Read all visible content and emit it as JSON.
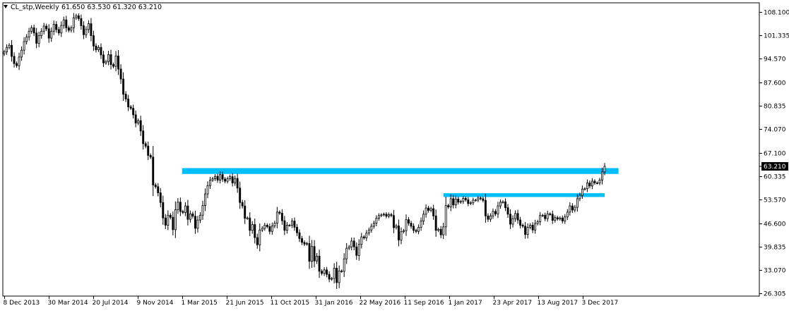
{
  "header": {
    "symbol": "CL_stp,Weekly",
    "ohlc": "61.650 63.530 61.320 63.210"
  },
  "colors": {
    "bull": "#ffffff",
    "bear": "#000000",
    "wick": "#000000",
    "zone": "#00bfff",
    "axis": "#000000",
    "price_tag": "#000000",
    "price_tag_text": "#ffffff"
  },
  "chart_data": {
    "type": "candlestick",
    "timeframe": "Weekly",
    "ylim": [
      26.305,
      108.1
    ],
    "y_ticks": [
      108.1,
      101.335,
      94.57,
      87.6,
      80.835,
      74.07,
      67.1,
      60.335,
      53.57,
      46.6,
      39.835,
      33.07,
      26.305
    ],
    "y_tick_labels": [
      "108.100",
      "101.335",
      "94.570",
      "87.600",
      "80.835",
      "74.070",
      "67.100",
      "60.335",
      "53.570",
      "46.600",
      "39.835",
      "33.070",
      "26.305"
    ],
    "x_start": "2013-12-08",
    "x_end": "2018-01-28",
    "x_ticks": [
      "2013-12-08",
      "2014-03-30",
      "2014-07-20",
      "2014-11-09",
      "2015-03-01",
      "2015-06-21",
      "2015-10-11",
      "2016-01-31",
      "2016-05-22",
      "2016-09-11",
      "2017-01-01",
      "2017-04-23",
      "2017-08-13",
      "2017-12-03"
    ],
    "x_tick_labels": [
      "8 Dec 2013",
      "30 Mar 2014",
      "20 Jul 2014",
      "9 Nov 2014",
      "1 Mar 2015",
      "21 Jun 2015",
      "11 Oct 2015",
      "31 Jan 2016",
      "22 May 2016",
      "11 Sep 2016",
      "1 Jan 2017",
      "23 Apr 2017",
      "13 Aug 2017",
      "3 Dec 2017"
    ],
    "last_price": 63.21,
    "last_price_label": "63.210",
    "closes": [
      96.5,
      97.8,
      98.4,
      95.2,
      93.1,
      92.5,
      95.0,
      97.0,
      99.5,
      100.8,
      102.5,
      103.5,
      102.0,
      99.0,
      101.2,
      102.5,
      104.0,
      103.2,
      100.5,
      102.5,
      104.5,
      103.0,
      102.0,
      104.2,
      105.8,
      103.5,
      102.8,
      103.5,
      106.4,
      107.0,
      106.2,
      104.1,
      101.5,
      103.0,
      104.7,
      101.2,
      98.2,
      97.1,
      97.8,
      95.6,
      93.3,
      93.7,
      95.7,
      92.8,
      92.3,
      95.3,
      91.5,
      88.6,
      84.2,
      82.8,
      80.5,
      80.1,
      78.2,
      75.8,
      76.5,
      73.5,
      69.8,
      69.1,
      66.4,
      65.9,
      57.8,
      57.3,
      55.5,
      52.7,
      48.2,
      46.1,
      49.0,
      48.4,
      44.8,
      50.6,
      52.8,
      50.1,
      49.8,
      51.7,
      47.8,
      49.4,
      48.7,
      45.2,
      47.6,
      49.0,
      51.8,
      55.2,
      57.6,
      59.2,
      59.6,
      60.3,
      59.2,
      60.8,
      59.5,
      58.9,
      59.6,
      60.2,
      58.4,
      59.7,
      56.9,
      52.7,
      51.7,
      48.1,
      48.2,
      44.6,
      46.3,
      42.5,
      40.4,
      44.7,
      45.2,
      46.1,
      45.7,
      44.3,
      45.9,
      46.7,
      49.9,
      49.6,
      47.4,
      44.6,
      46.1,
      46.1,
      47.3,
      45.5,
      43.9,
      42.2,
      41.1,
      40.6,
      40.8,
      35.6,
      39.9,
      35.7,
      37.1,
      32.7,
      32.1,
      33.1,
      31.8,
      30.4,
      30.6,
      33.6,
      29.4,
      32.8,
      32.7,
      36.3,
      39.4,
      39.8,
      41.5,
      39.8,
      37.3,
      40.5,
      42.7,
      42.4,
      43.8,
      44.7,
      45.8,
      46.7,
      48.1,
      48.9,
      49.1,
      49.3,
      48.7,
      49.2,
      48.9,
      45.4,
      45.9,
      41.8,
      44.2,
      44.5,
      47.7,
      46.7,
      45.8,
      44.6,
      44.3,
      45.5,
      47.3,
      49.3,
      51.1,
      50.4,
      50.9,
      48.8,
      44.6,
      44.9,
      43.3,
      45.6,
      51.8,
      51.4,
      53.8,
      52.0,
      53.7,
      52.8,
      53.0,
      53.9,
      53.5,
      52.4,
      52.6,
      53.4,
      53.4,
      54.0,
      53.8,
      53.3,
      48.8,
      47.8,
      48.8,
      50.1,
      49.4,
      51.7,
      52.8,
      52.9,
      51.2,
      49.3,
      46.4,
      48.0,
      49.5,
      47.6,
      46.1,
      45.8,
      43.4,
      45.5,
      46.1,
      44.7,
      46.6,
      47.1,
      48.9,
      49.0,
      48.0,
      49.4,
      49.3,
      47.5,
      48.3,
      47.9,
      48.2,
      47.3,
      48.5,
      49.9,
      51.7,
      50.5,
      51.3,
      53.8,
      54.8,
      56.6,
      56.7,
      58.4,
      57.5,
      58.9,
      58.4,
      58.4,
      59.2,
      61.6,
      63.21
    ],
    "zones": [
      {
        "name": "resistance-zone-upper",
        "x_start": "2015-03-01",
        "x_end": "2018-03-04",
        "y_low": 61.0,
        "y_high": 62.7
      },
      {
        "name": "support-zone-lower",
        "x_start": "2016-12-18",
        "x_end": "2018-01-28",
        "y_low": 54.3,
        "y_high": 55.4
      }
    ]
  }
}
